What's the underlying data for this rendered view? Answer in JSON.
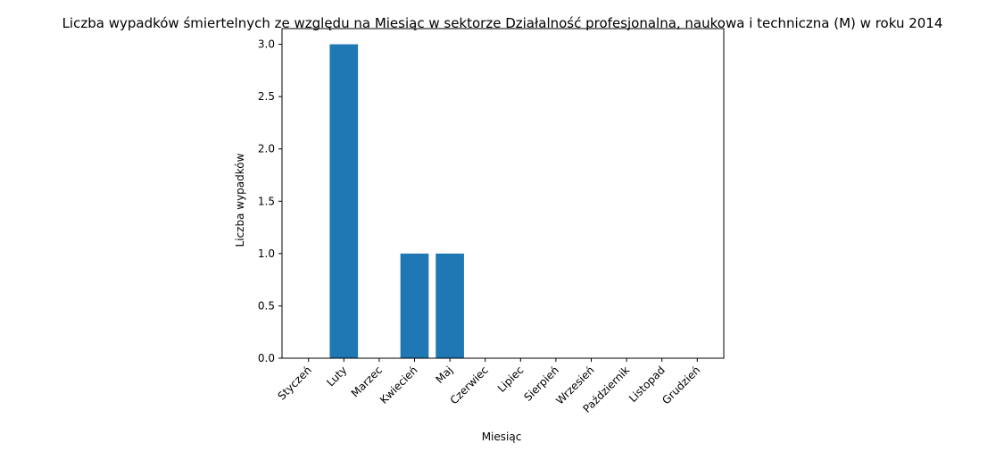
{
  "chart_data": {
    "type": "bar",
    "title": "Liczba wypadków śmiertelnych ze względu na Miesiąc w sektorze Działalność profesjonalna, naukowa i techniczna  (M) w roku 2014",
    "xlabel": "Miesiąc",
    "ylabel": "Liczba wypadków",
    "categories": [
      "Styczeń",
      "Luty",
      "Marzec",
      "Kwiecień",
      "Maj",
      "Czerwiec",
      "Lipiec",
      "Sierpień",
      "Wrzesień",
      "Październik",
      "Listopad",
      "Grudzień"
    ],
    "values": [
      0,
      3,
      0,
      1,
      1,
      0,
      0,
      0,
      0,
      0,
      0,
      0
    ],
    "ylim": [
      0,
      3.15
    ],
    "yticks": [
      "0.0",
      "0.5",
      "1.0",
      "1.5",
      "2.0",
      "2.5",
      "3.0"
    ],
    "grid": false,
    "bar_color": "#1f77b4"
  }
}
